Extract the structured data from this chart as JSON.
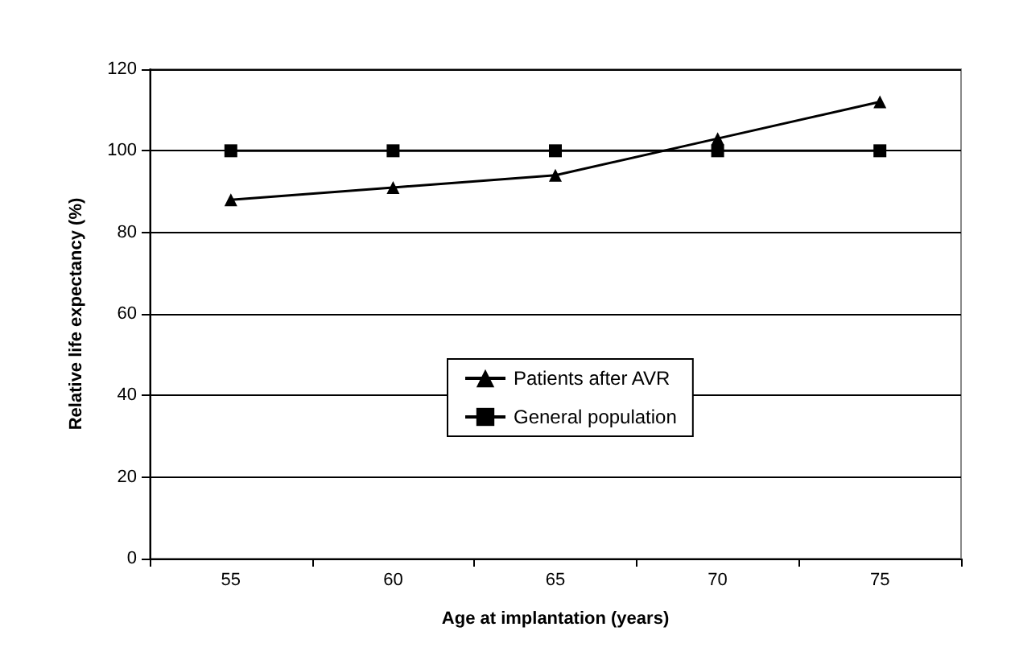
{
  "chart_data": {
    "type": "line",
    "xlabel": "Age at implantation (years)",
    "ylabel": "Relative life expectancy (%)",
    "categories": [
      "55",
      "60",
      "65",
      "70",
      "75"
    ],
    "series": [
      {
        "name": "Patients after AVR",
        "color": "#000000",
        "marker": "triangle",
        "values": [
          88,
          91,
          94,
          103,
          112
        ]
      },
      {
        "name": "General population",
        "color": "#000000",
        "marker": "square",
        "values": [
          100,
          100,
          100,
          100,
          100
        ]
      }
    ],
    "ylim": [
      0,
      120
    ],
    "yticks": [
      0,
      20,
      40,
      60,
      80,
      100,
      120
    ],
    "grid": "y",
    "legend": "center",
    "line_style": "solid"
  }
}
